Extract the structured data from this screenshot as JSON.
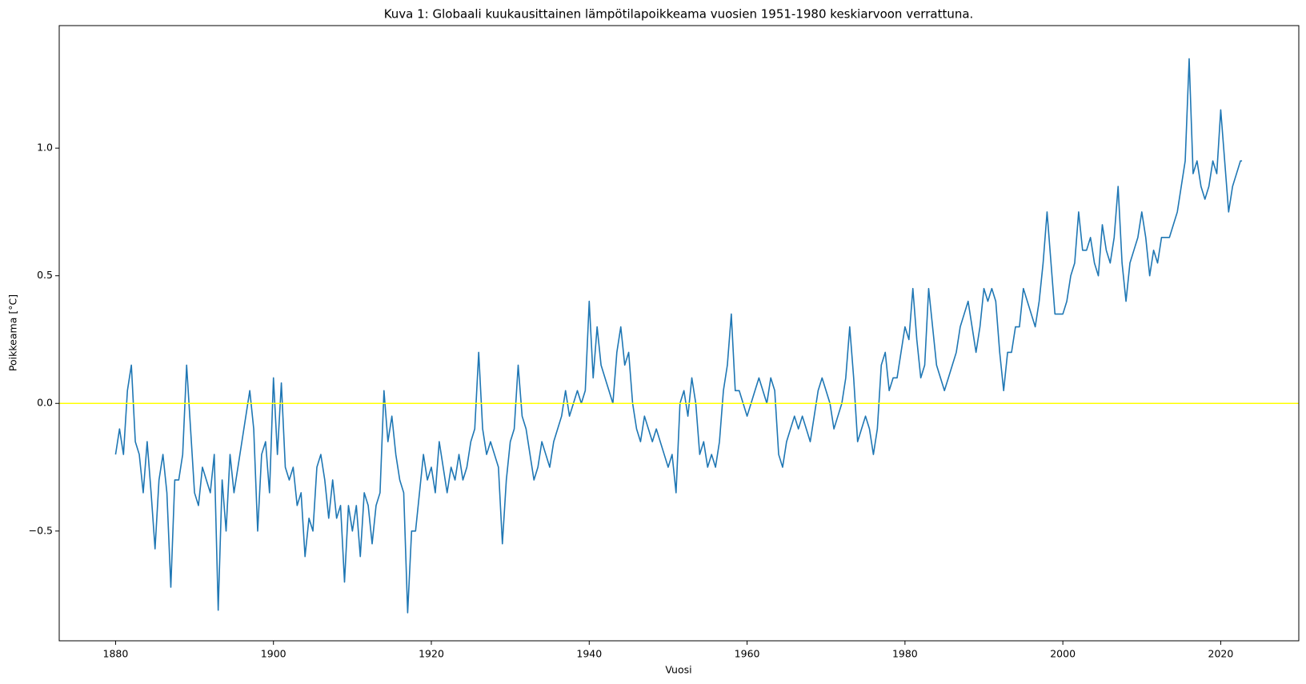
{
  "chart_data": {
    "type": "line",
    "title": "Kuva 1: Globaali kuukausittainen lämpötilapoikkeama vuosien 1951-1980 keskiarvoon verrattuna.",
    "xlabel": "Vuosi",
    "ylabel": "Poikkeama [°C]",
    "xlim": [
      1872.86,
      2029.89
    ],
    "ylim": [
      -0.93,
      1.48
    ],
    "xticks": [
      1880,
      1900,
      1920,
      1940,
      1960,
      1980,
      2000,
      2020
    ],
    "yticks": [
      {
        "value": -0.5,
        "label": "−0.5"
      },
      {
        "value": 0,
        "label": "0.0"
      },
      0.5,
      {
        "value": 1,
        "label": "1.0"
      }
    ],
    "reference_line": {
      "value": 0,
      "color": "#ffff00"
    },
    "x": [
      1880,
      1880.5,
      1881,
      1881.5,
      1882,
      1882.5,
      1883,
      1883.5,
      1884,
      1884.5,
      1885,
      1885.5,
      1886,
      1886.5,
      1887,
      1887.5,
      1888,
      1888.5,
      1889,
      1889.5,
      1890,
      1890.5,
      1891,
      1891.5,
      1892,
      1892.5,
      1893,
      1893.5,
      1894,
      1894.5,
      1895,
      1895.5,
      1896,
      1896.5,
      1897,
      1897.5,
      1898,
      1898.5,
      1899,
      1899.5,
      1900,
      1900.5,
      1901,
      1901.5,
      1902,
      1902.5,
      1903,
      1903.5,
      1904,
      1904.5,
      1905,
      1905.5,
      1906,
      1906.5,
      1907,
      1907.5,
      1908,
      1908.5,
      1909,
      1909.5,
      1910,
      1910.5,
      1911,
      1911.5,
      1912,
      1912.5,
      1913,
      1913.5,
      1914,
      1914.5,
      1915,
      1915.5,
      1916,
      1916.5,
      1917,
      1917.5,
      1918,
      1918.5,
      1919,
      1919.5,
      1920,
      1920.5,
      1921,
      1921.5,
      1922,
      1922.5,
      1923,
      1923.5,
      1924,
      1924.5,
      1925,
      1925.5,
      1926,
      1926.5,
      1927,
      1927.5,
      1928,
      1928.5,
      1929,
      1929.5,
      1930,
      1930.5,
      1931,
      1931.5,
      1932,
      1932.5,
      1933,
      1933.5,
      1934,
      1934.5,
      1935,
      1935.5,
      1936,
      1936.5,
      1937,
      1937.5,
      1938,
      1938.5,
      1939,
      1939.5,
      1940,
      1940.5,
      1941,
      1941.5,
      1942,
      1942.5,
      1943,
      1943.5,
      1944,
      1944.5,
      1945,
      1945.5,
      1946,
      1946.5,
      1947,
      1947.5,
      1948,
      1948.5,
      1949,
      1949.5,
      1950,
      1950.5,
      1951,
      1951.5,
      1952,
      1952.5,
      1953,
      1953.5,
      1954,
      1954.5,
      1955,
      1955.5,
      1956,
      1956.5,
      1957,
      1957.5,
      1958,
      1958.5,
      1959,
      1959.5,
      1960,
      1960.5,
      1961,
      1961.5,
      1962,
      1962.5,
      1963,
      1963.5,
      1964,
      1964.5,
      1965,
      1965.5,
      1966,
      1966.5,
      1967,
      1967.5,
      1968,
      1968.5,
      1969,
      1969.5,
      1970,
      1970.5,
      1971,
      1971.5,
      1972,
      1972.5,
      1973,
      1973.5,
      1974,
      1974.5,
      1975,
      1975.5,
      1976,
      1976.5,
      1977,
      1977.5,
      1978,
      1978.5,
      1979,
      1979.5,
      1980,
      1980.5,
      1981,
      1981.5,
      1982,
      1982.5,
      1983,
      1983.5,
      1984,
      1984.5,
      1985,
      1985.5,
      1986,
      1986.5,
      1987,
      1987.5,
      1988,
      1988.5,
      1989,
      1989.5,
      1990,
      1990.5,
      1991,
      1991.5,
      1992,
      1992.5,
      1993,
      1993.5,
      1994,
      1994.5,
      1995,
      1995.5,
      1996,
      1996.5,
      1997,
      1997.5,
      1998,
      1998.5,
      1999,
      1999.5,
      2000,
      2000.5,
      2001,
      2001.5,
      2002,
      2002.5,
      2003,
      2003.5,
      2004,
      2004.5,
      2005,
      2005.5,
      2006,
      2006.5,
      2007,
      2007.5,
      2008,
      2008.5,
      2009,
      2009.5,
      2010,
      2010.5,
      2011,
      2011.5,
      2012,
      2012.5,
      2013,
      2013.5,
      2014,
      2014.5,
      2015,
      2015.5,
      2016,
      2016.5,
      2017,
      2017.5,
      2018,
      2018.5,
      2019,
      2019.5,
      2020,
      2020.5,
      2021,
      2021.5,
      2022,
      2022.5,
      2022.7
    ],
    "series": [
      {
        "color": "#1f77b4",
        "values": [
          -0.2,
          -0.1,
          -0.2,
          0.05,
          0.15,
          -0.15,
          -0.2,
          -0.35,
          -0.15,
          -0.35,
          -0.57,
          -0.3,
          -0.2,
          -0.35,
          -0.72,
          -0.3,
          -0.3,
          -0.2,
          0.15,
          -0.1,
          -0.35,
          -0.4,
          -0.25,
          -0.3,
          -0.35,
          -0.2,
          -0.81,
          -0.3,
          -0.5,
          -0.2,
          -0.35,
          -0.25,
          -0.15,
          -0.05,
          0.05,
          -0.1,
          -0.5,
          -0.2,
          -0.15,
          -0.35,
          0.1,
          -0.2,
          0.08,
          -0.25,
          -0.3,
          -0.25,
          -0.4,
          -0.35,
          -0.6,
          -0.45,
          -0.5,
          -0.25,
          -0.2,
          -0.3,
          -0.45,
          -0.3,
          -0.45,
          -0.4,
          -0.7,
          -0.4,
          -0.5,
          -0.4,
          -0.6,
          -0.35,
          -0.4,
          -0.55,
          -0.4,
          -0.35,
          0.05,
          -0.15,
          -0.05,
          -0.2,
          -0.3,
          -0.35,
          -0.82,
          -0.5,
          -0.5,
          -0.35,
          -0.2,
          -0.3,
          -0.25,
          -0.35,
          -0.15,
          -0.25,
          -0.35,
          -0.25,
          -0.3,
          -0.2,
          -0.3,
          -0.25,
          -0.15,
          -0.1,
          0.2,
          -0.1,
          -0.2,
          -0.15,
          -0.2,
          -0.25,
          -0.55,
          -0.3,
          -0.15,
          -0.1,
          0.15,
          -0.05,
          -0.1,
          -0.2,
          -0.3,
          -0.25,
          -0.15,
          -0.2,
          -0.25,
          -0.15,
          -0.1,
          -0.05,
          0.05,
          -0.05,
          0,
          0.05,
          0,
          0.05,
          0.4,
          0.1,
          0.3,
          0.15,
          0.1,
          0.05,
          0,
          0.2,
          0.3,
          0.15,
          0.2,
          0,
          -0.1,
          -0.15,
          -0.05,
          -0.1,
          -0.15,
          -0.1,
          -0.15,
          -0.2,
          -0.25,
          -0.2,
          -0.35,
          0,
          0.05,
          -0.05,
          0.1,
          0,
          -0.2,
          -0.15,
          -0.25,
          -0.2,
          -0.25,
          -0.15,
          0.05,
          0.15,
          0.35,
          0.05,
          0.05,
          0,
          -0.05,
          0,
          0.05,
          0.1,
          0.05,
          0,
          0.1,
          0.05,
          -0.2,
          -0.25,
          -0.15,
          -0.1,
          -0.05,
          -0.1,
          -0.05,
          -0.1,
          -0.15,
          -0.05,
          0.05,
          0.1,
          0.05,
          0,
          -0.1,
          -0.05,
          0,
          0.1,
          0.3,
          0.1,
          -0.15,
          -0.1,
          -0.05,
          -0.1,
          -0.2,
          -0.1,
          0.15,
          0.2,
          0.05,
          0.1,
          0.1,
          0.2,
          0.3,
          0.25,
          0.45,
          0.25,
          0.1,
          0.15,
          0.45,
          0.3,
          0.15,
          0.1,
          0.05,
          0.1,
          0.15,
          0.2,
          0.3,
          0.35,
          0.4,
          0.3,
          0.2,
          0.3,
          0.45,
          0.4,
          0.45,
          0.4,
          0.2,
          0.05,
          0.2,
          0.2,
          0.3,
          0.3,
          0.45,
          0.4,
          0.35,
          0.3,
          0.4,
          0.55,
          0.75,
          0.55,
          0.35,
          0.35,
          0.35,
          0.4,
          0.5,
          0.55,
          0.75,
          0.6,
          0.6,
          0.65,
          0.55,
          0.5,
          0.7,
          0.6,
          0.55,
          0.65,
          0.85,
          0.55,
          0.4,
          0.55,
          0.6,
          0.65,
          0.75,
          0.65,
          0.5,
          0.6,
          0.55,
          0.65,
          0.65,
          0.65,
          0.7,
          0.75,
          0.85,
          0.95,
          1.35,
          0.9,
          0.95,
          0.85,
          0.8,
          0.85,
          0.95,
          0.9,
          1.15,
          0.95,
          0.75,
          0.85,
          0.9,
          0.95,
          0.95
        ]
      }
    ]
  }
}
